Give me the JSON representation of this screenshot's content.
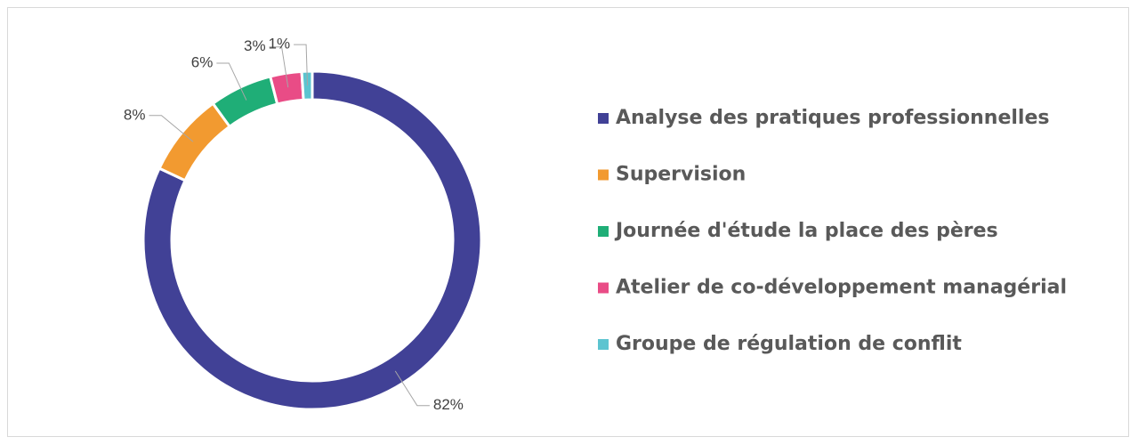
{
  "chart_data": {
    "type": "donut",
    "categories": [
      "Analyse des pratiques professionnelles",
      "Supervision",
      "Journée d'étude la place des pères",
      "Atelier de co-développement managérial",
      "Groupe de régulation de conflit"
    ],
    "values": [
      82,
      8,
      6,
      3,
      1
    ],
    "value_labels": [
      "82%",
      "8%",
      "6%",
      "3%",
      "1%"
    ],
    "colors": [
      "#414196",
      "#f29a30",
      "#1fae77",
      "#e94c86",
      "#5cc4d0"
    ],
    "legend": "right"
  }
}
